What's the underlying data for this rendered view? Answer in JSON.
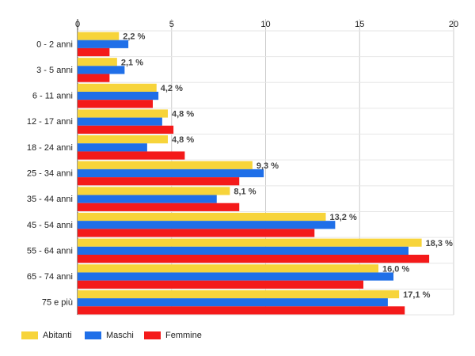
{
  "chart_data": {
    "type": "bar",
    "orientation": "horizontal",
    "title": "",
    "xlabel": "",
    "ylabel": "",
    "xlim": [
      0,
      20
    ],
    "x_ticks": [
      0,
      5,
      10,
      15,
      20
    ],
    "grid": true,
    "legend_position": "bottom-left",
    "categories": [
      "0 - 2 anni",
      "3 - 5 anni",
      "6 - 11 anni",
      "12 - 17 anni",
      "18 - 24 anni",
      "25 - 34 anni",
      "35 - 44 anni",
      "45 - 54 anni",
      "55 - 64 anni",
      "65 - 74 anni",
      "75 e più"
    ],
    "series": [
      {
        "name": "Abitanti",
        "color": "#f7d43a",
        "values": [
          2.2,
          2.1,
          4.2,
          4.8,
          4.8,
          9.3,
          8.1,
          13.2,
          18.3,
          16.0,
          17.1
        ]
      },
      {
        "name": "Maschi",
        "color": "#1f6fe8",
        "values": [
          2.7,
          2.5,
          4.3,
          4.5,
          3.7,
          9.9,
          7.4,
          13.7,
          17.6,
          16.8,
          16.5
        ]
      },
      {
        "name": "Femmine",
        "color": "#f41a1a",
        "values": [
          1.7,
          1.7,
          4.0,
          5.1,
          5.7,
          8.6,
          8.6,
          12.6,
          18.7,
          15.2,
          17.4
        ]
      }
    ],
    "data_labels": [
      "2,2 %",
      "2,1 %",
      "4,2 %",
      "4,8 %",
      "4,8 %",
      "9,3 %",
      "8,1 %",
      "13,2 %",
      "18,3 %",
      "16,0 %",
      "17,1 %"
    ]
  }
}
